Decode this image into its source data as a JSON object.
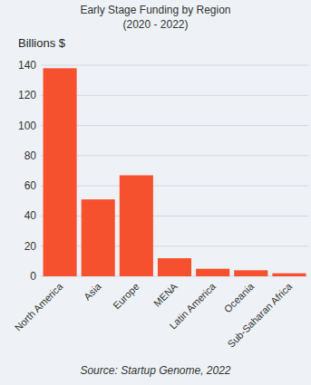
{
  "chart_data": {
    "type": "bar",
    "title": "Early Stage Funding by Region",
    "subtitle": "(2020 - 2022)",
    "y_label": "Billions $",
    "source": "Source: Startup Genome, 2022",
    "categories": [
      "North America",
      "Asia",
      "Europe",
      "MENA",
      "Latin America",
      "Oceania",
      "Sub-Saharan Africa"
    ],
    "values": [
      138,
      51,
      67,
      12,
      5,
      4,
      2
    ],
    "color": "#f5512e",
    "ylim": [
      0,
      140
    ],
    "yticks": [
      0,
      20,
      40,
      60,
      80,
      100,
      120,
      140
    ],
    "grid": true
  }
}
